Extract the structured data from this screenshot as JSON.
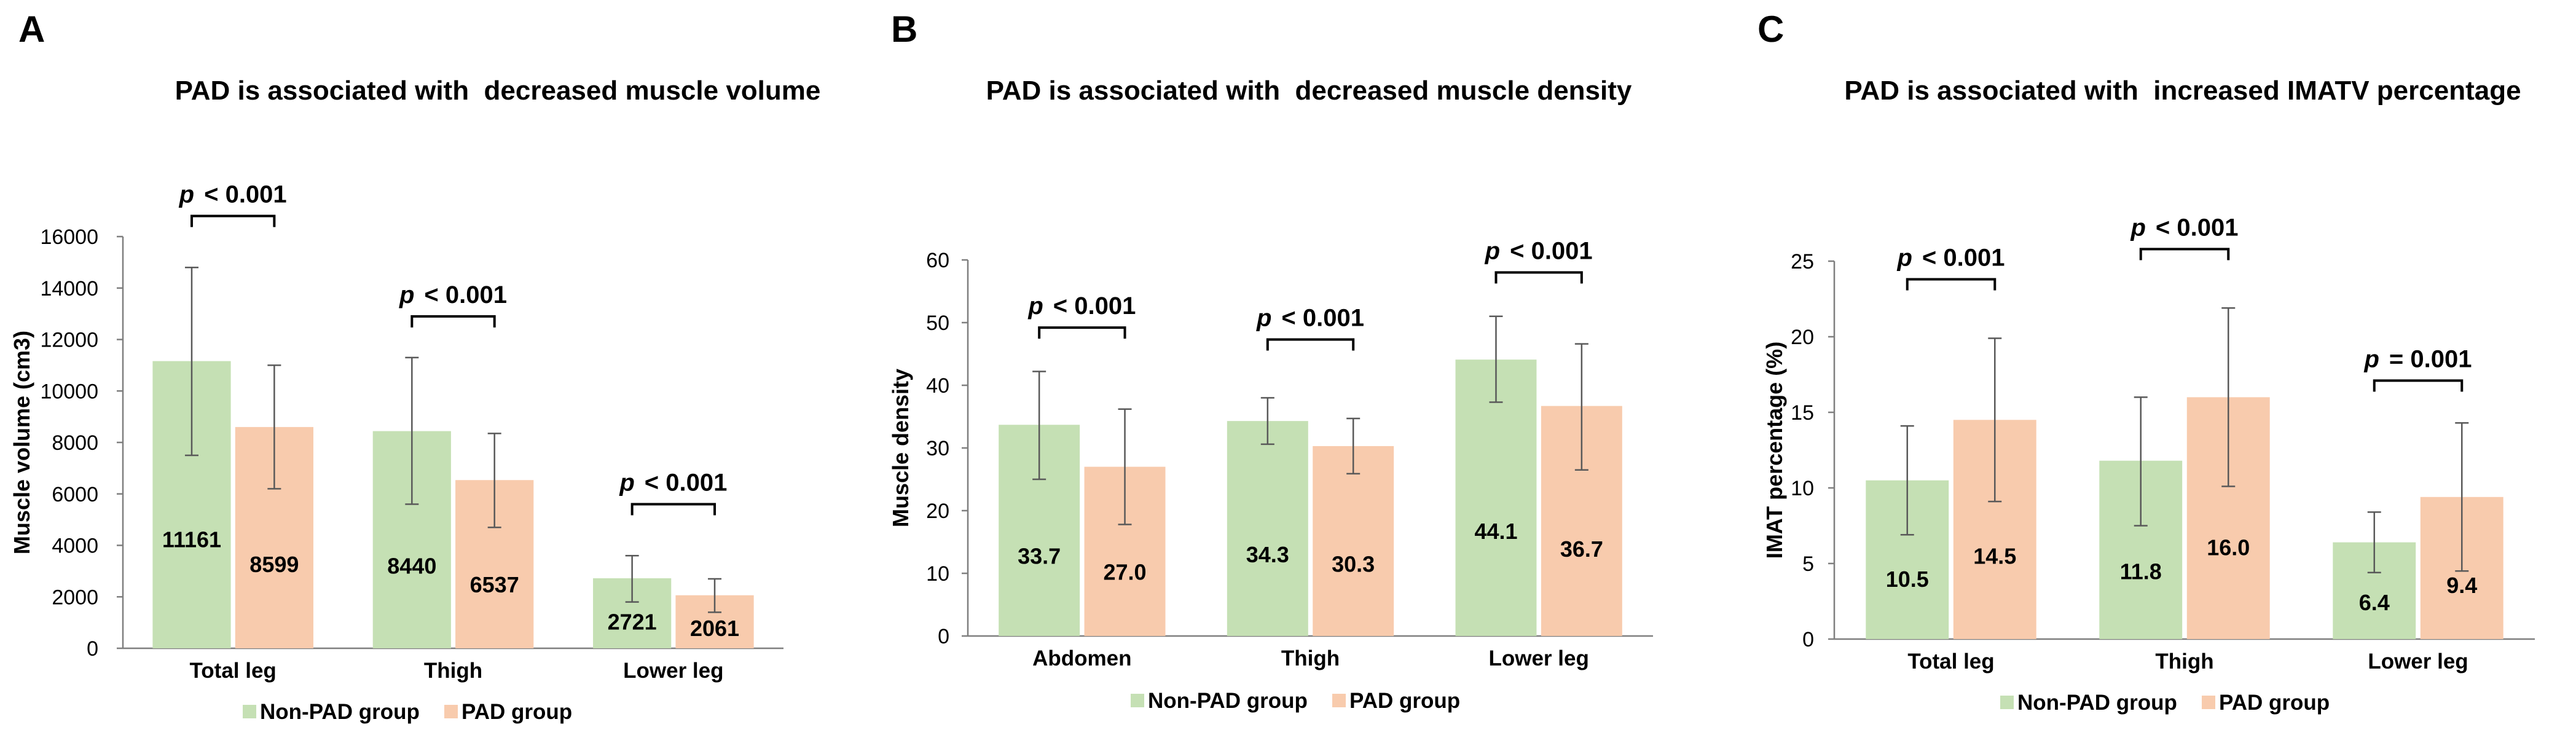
{
  "colors": {
    "non_pad": "#c5e0b4",
    "pad": "#f8cbad",
    "axis": "#7f7f7f",
    "error_bar": "#595959",
    "bracket": "#000000"
  },
  "chart_data": [
    {
      "panel": "A",
      "type": "bar",
      "title": "PAD is associated with  decreased muscle volume",
      "xlabel": "",
      "ylabel": "Muscle volume (cm3)",
      "ylim": [
        0,
        16000
      ],
      "yticks": [
        0,
        2000,
        4000,
        6000,
        8000,
        10000,
        12000,
        14000,
        16000
      ],
      "ytick_labels": [
        "0",
        "2000",
        "4000",
        "6000",
        "8000",
        "10000",
        "12000",
        "14000",
        "16000"
      ],
      "categories": [
        "Total leg",
        "Thigh",
        "Lower leg"
      ],
      "series": [
        {
          "name": "Non-PAD group",
          "values": [
            11161,
            8440,
            2721
          ],
          "value_labels": [
            "11161",
            "8440",
            "2721"
          ],
          "error_low": [
            7500,
            5600,
            1800
          ],
          "error_high": [
            14800,
            11300,
            3600
          ]
        },
        {
          "name": "PAD group",
          "values": [
            8599,
            6537,
            2061
          ],
          "value_labels": [
            "8599",
            "6537",
            "2061"
          ],
          "error_low": [
            6200,
            4700,
            1400
          ],
          "error_high": [
            11000,
            8350,
            2700
          ]
        }
      ],
      "significance": [
        {
          "category": "Total leg",
          "p": "p",
          "text": "< 0.001",
          "bracket_value": 16800
        },
        {
          "category": "Thigh",
          "p": "p",
          "text": "< 0.001",
          "bracket_value": 12900
        },
        {
          "category": "Lower leg",
          "p": "p",
          "text": "< 0.001",
          "bracket_value": 5600
        }
      ],
      "legend": [
        "Non-PAD group",
        "PAD group"
      ],
      "legend_position": "bottom"
    },
    {
      "panel": "B",
      "type": "bar",
      "title": "PAD is associated with  decreased muscle density",
      "xlabel": "",
      "ylabel": "Muscle density",
      "ylim": [
        0,
        60
      ],
      "yticks": [
        0,
        10,
        20,
        30,
        40,
        50,
        60
      ],
      "ytick_labels": [
        "0",
        "10",
        "20",
        "30",
        "40",
        "50",
        "60"
      ],
      "categories": [
        "Abdomen",
        "Thigh",
        "Lower leg"
      ],
      "series": [
        {
          "name": "Non-PAD group",
          "values": [
            33.7,
            34.3,
            44.1
          ],
          "value_labels": [
            "33.7",
            "34.3",
            "44.1"
          ],
          "error_low": [
            25.0,
            30.6,
            37.3
          ],
          "error_high": [
            42.2,
            38.0,
            51.0
          ]
        },
        {
          "name": "PAD group",
          "values": [
            27.0,
            30.3,
            36.7
          ],
          "value_labels": [
            "27.0",
            "30.3",
            "36.7"
          ],
          "error_low": [
            17.8,
            25.9,
            26.5
          ],
          "error_high": [
            36.2,
            34.7,
            46.6
          ]
        }
      ],
      "significance": [
        {
          "category": "Abdomen",
          "p": "p",
          "text": "< 0.001",
          "bracket_value": 49.2
        },
        {
          "category": "Thigh",
          "p": "p",
          "text": "< 0.001",
          "bracket_value": 47.3
        },
        {
          "category": "Lower leg",
          "p": "p",
          "text": "< 0.001",
          "bracket_value": 58.0
        }
      ],
      "legend": [
        "Non-PAD group",
        "PAD group"
      ],
      "legend_position": "bottom"
    },
    {
      "panel": "C",
      "type": "bar",
      "title": "PAD is associated with  increased IMATV percentage",
      "xlabel": "",
      "ylabel": "IMAT percentage (%)",
      "ylim": [
        0,
        25
      ],
      "yticks": [
        0,
        5,
        10,
        15,
        20,
        25
      ],
      "ytick_labels": [
        "0",
        "5",
        "10",
        "15",
        "20",
        "25"
      ],
      "categories": [
        "Total leg",
        "Thigh",
        "Lower leg"
      ],
      "series": [
        {
          "name": "Non-PAD group",
          "values": [
            10.5,
            11.8,
            6.4
          ],
          "value_labels": [
            "10.5",
            "11.8",
            "6.4"
          ],
          "error_low": [
            6.9,
            7.5,
            4.4
          ],
          "error_high": [
            14.1,
            16.0,
            8.4
          ]
        },
        {
          "name": "PAD group",
          "values": [
            14.5,
            16.0,
            9.4
          ],
          "value_labels": [
            "14.5",
            "16.0",
            "9.4"
          ],
          "error_low": [
            9.1,
            10.1,
            4.5
          ],
          "error_high": [
            19.9,
            21.9,
            14.3
          ]
        }
      ],
      "significance": [
        {
          "category": "Total leg",
          "p": "p",
          "text": "< 0.001",
          "bracket_value": 23.8
        },
        {
          "category": "Thigh",
          "p": "p",
          "text": "< 0.001",
          "bracket_value": 25.8
        },
        {
          "category": "Lower leg",
          "p": "p",
          "text": "= 0.001",
          "bracket_value": 17.1
        }
      ],
      "legend": [
        "Non-PAD group",
        "PAD group"
      ],
      "legend_position": "bottom"
    }
  ]
}
